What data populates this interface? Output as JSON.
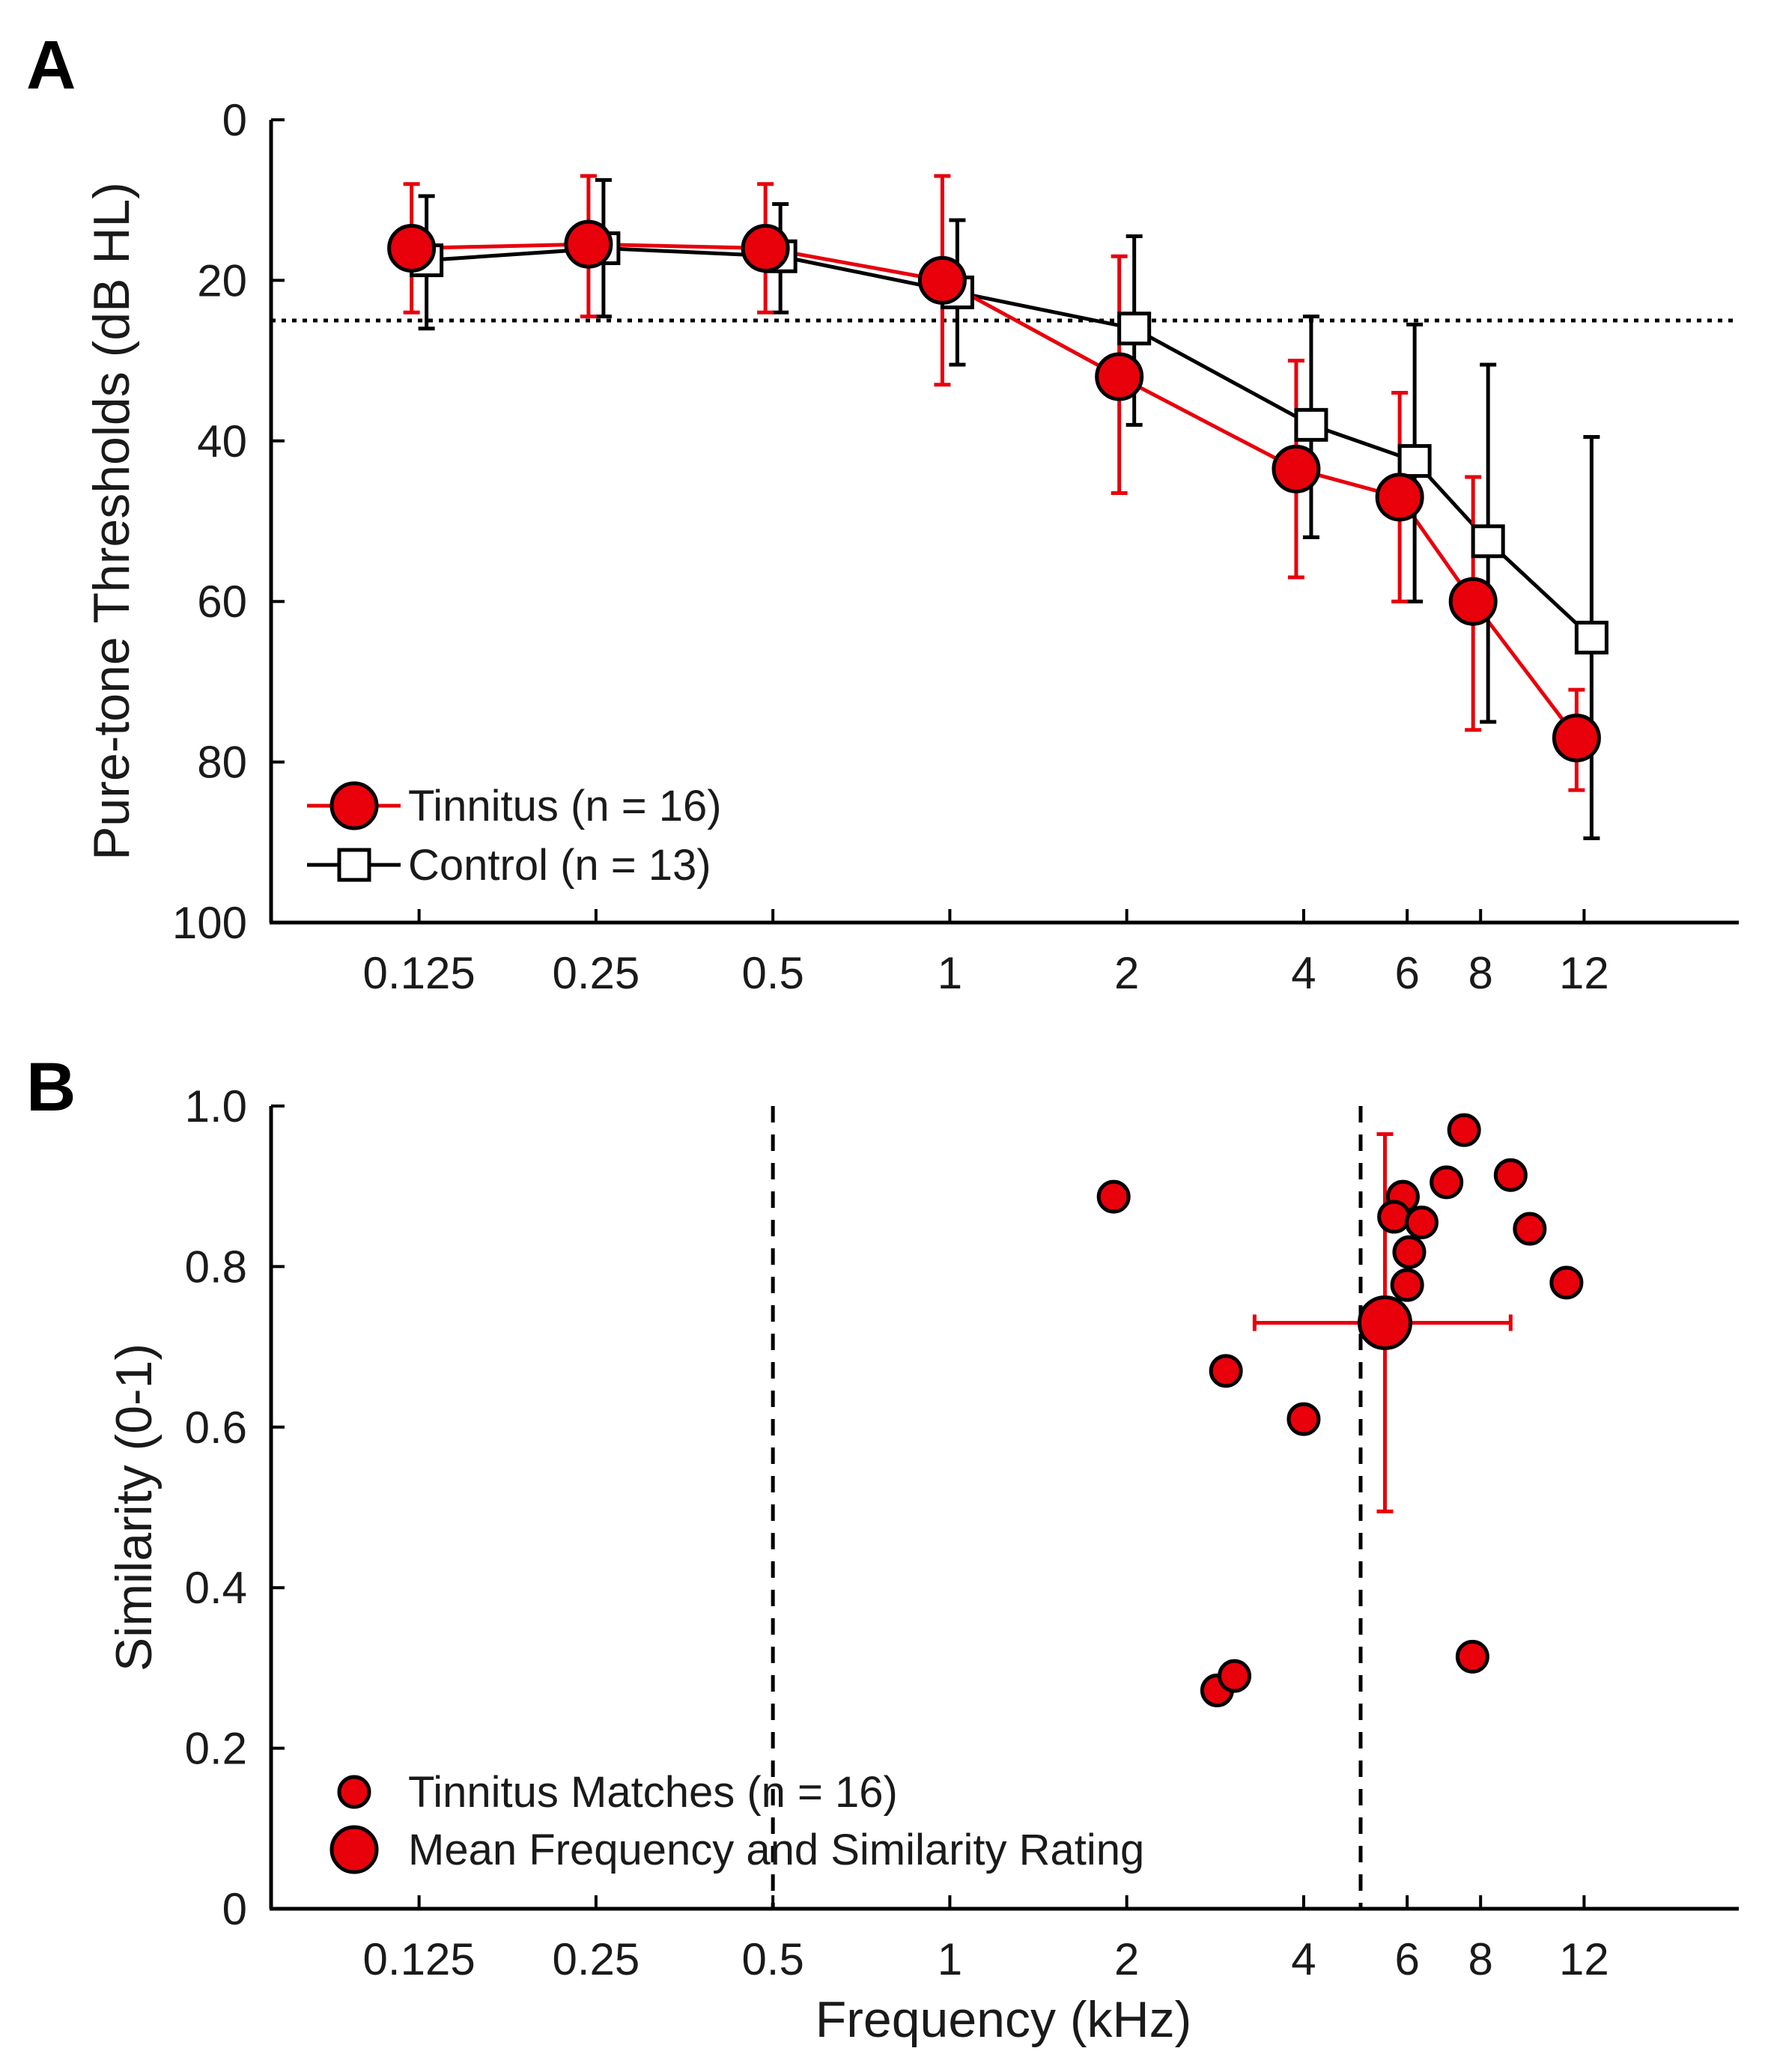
{
  "chart_data": [
    {
      "type": "line",
      "panel_label": "A",
      "title": "",
      "xlabel": "",
      "ylabel": "Pure-tone Thresholds (dB HL)",
      "x_scale": "log",
      "y_inverted": true,
      "ylim": [
        0,
        100
      ],
      "xlim_khz": [
        0.07,
        22
      ],
      "x_ticks": [
        0.125,
        0.25,
        0.5,
        1,
        2,
        4,
        6,
        8,
        12
      ],
      "x_tick_labels": [
        "0.125",
        "0.25",
        "0.5",
        "1",
        "2",
        "4",
        "6",
        "8",
        "12"
      ],
      "y_ticks": [
        0,
        20,
        40,
        60,
        80,
        100
      ],
      "y_tick_labels": [
        "0",
        "20",
        "40",
        "60",
        "80",
        "100"
      ],
      "reference_line": {
        "y": 25,
        "style": "dotted"
      },
      "legend_position": "bottom-left",
      "series": [
        {
          "name": "Tinnitus (n = 16)",
          "color": "#e8000b",
          "marker": "circle",
          "x": [
            0.125,
            0.25,
            0.5,
            1,
            2,
            4,
            6,
            8,
            12
          ],
          "values": [
            16,
            15.5,
            16,
            20,
            32,
            43.5,
            47,
            60,
            77
          ],
          "err_low": [
            8,
            7,
            8,
            7,
            17,
            30,
            34,
            44.5,
            71
          ],
          "err_high": [
            24,
            24.5,
            24,
            33,
            46.5,
            57,
            60,
            76,
            83.5
          ]
        },
        {
          "name": "Control (n = 13)",
          "color": "#000000",
          "marker": "square",
          "x": [
            0.125,
            0.25,
            0.5,
            1,
            2,
            4,
            6,
            8,
            12
          ],
          "values": [
            17.5,
            16,
            17,
            21.5,
            26,
            38,
            42.5,
            52.5,
            64.5
          ],
          "err_low": [
            9.5,
            7.5,
            10.5,
            12.5,
            14.5,
            24.5,
            25.5,
            30.5,
            39.5
          ],
          "err_high": [
            26,
            24.5,
            24,
            30.5,
            38,
            52,
            60,
            75,
            89.5
          ]
        }
      ]
    },
    {
      "type": "scatter",
      "panel_label": "B",
      "title": "",
      "xlabel": "Frequency (kHz)",
      "ylabel": "Similarity (0-1)",
      "x_scale": "log",
      "ylim": [
        0,
        1
      ],
      "xlim_khz": [
        0.07,
        22
      ],
      "x_ticks": [
        0.125,
        0.25,
        0.5,
        1,
        2,
        4,
        6,
        8,
        12
      ],
      "x_tick_labels": [
        "0.125",
        "0.25",
        "0.5",
        "1",
        "2",
        "4",
        "6",
        "8",
        "12"
      ],
      "y_ticks": [
        0,
        0.2,
        0.4,
        0.6,
        0.8,
        1.0
      ],
      "y_tick_labels": [
        "0",
        "0.2",
        "0.4",
        "0.6",
        "0.8",
        "1.0"
      ],
      "reference_lines_x": [
        0.5,
        5
      ],
      "legend_position": "bottom-left",
      "series": [
        {
          "name": "Tinnitus Matches (n = 16)",
          "color": "#e8000b",
          "marker": "circle-small",
          "x": [
            1.9,
            2.95,
            2.85,
            3.05,
            4.0,
            5.9,
            5.7,
            6.35,
            6.05,
            6.0,
            7.0,
            7.5,
            7.75,
            9.0,
            9.7,
            11.2
          ],
          "values": [
            0.887,
            0.67,
            0.272,
            0.29,
            0.61,
            0.887,
            0.862,
            0.855,
            0.818,
            0.777,
            0.905,
            0.97,
            0.314,
            0.914,
            0.847,
            0.78
          ]
        },
        {
          "name": "Mean Frequency and Similarity Rating",
          "color": "#e8000b",
          "marker": "circle-large",
          "x": [
            5.5
          ],
          "values": [
            0.73
          ],
          "x_err": [
            3.3,
            9.0
          ],
          "y_err": [
            0.495,
            0.965
          ]
        }
      ]
    }
  ]
}
